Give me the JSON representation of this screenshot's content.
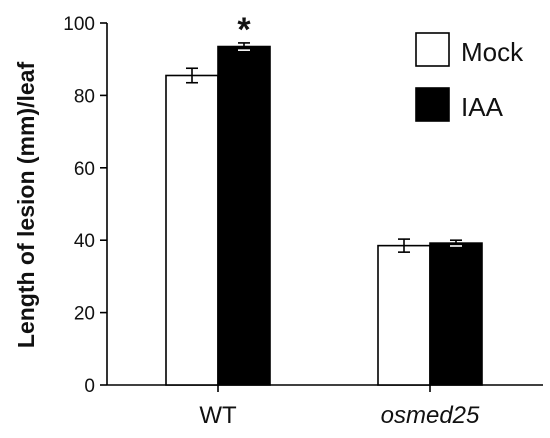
{
  "chart_data": {
    "type": "bar",
    "title": "",
    "xlabel": "",
    "ylabel": "Length of lesion (mm)/leaf",
    "categories": [
      "WT",
      "osmed25"
    ],
    "category_styles": [
      "normal",
      "italic"
    ],
    "ylim": [
      0,
      100
    ],
    "yticks": [
      "0",
      "20",
      "40",
      "60",
      "80",
      "100"
    ],
    "grid": false,
    "legend_position": "top-right",
    "series": [
      {
        "name": "Mock",
        "values": [
          85.5,
          38.5
        ],
        "errors": [
          2.0,
          1.8
        ],
        "fill": "#ffffff"
      },
      {
        "name": "IAA",
        "values": [
          93.5,
          39.2
        ],
        "errors": [
          1.0,
          0.8
        ],
        "fill": "#000000"
      }
    ],
    "annotations": [
      {
        "text": "*",
        "category_index": 0,
        "series_index": 1
      }
    ]
  }
}
